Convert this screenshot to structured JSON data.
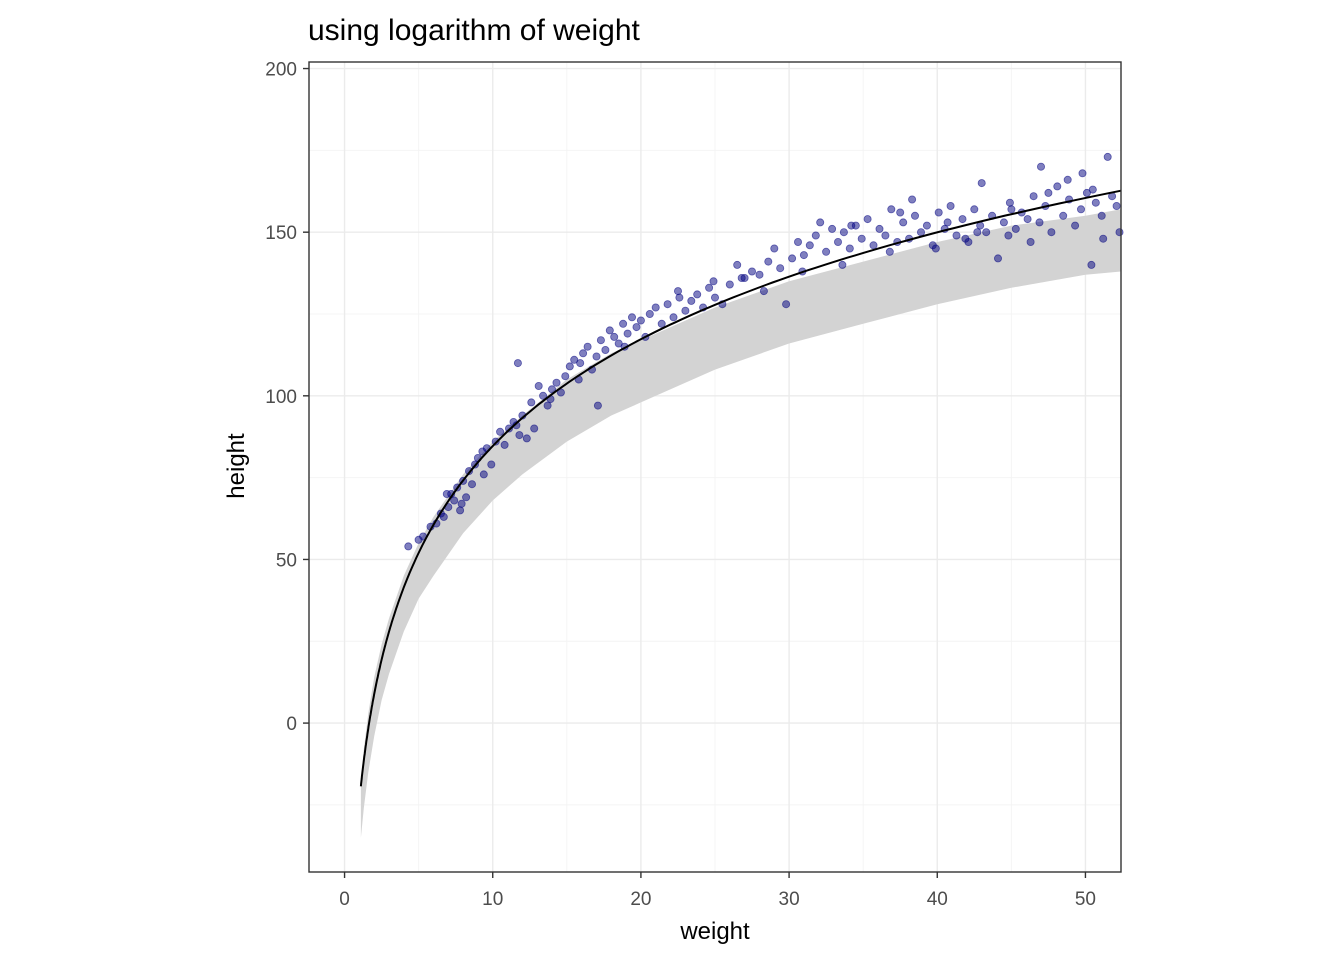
{
  "chart_data": {
    "type": "scatter",
    "title": "using logarithm of weight",
    "xlabel": "weight",
    "ylabel": "height",
    "xlim": [
      -2.4,
      52.4
    ],
    "ylim": [
      -45.5,
      202
    ],
    "x_ticks": [
      0,
      10,
      20,
      30,
      40,
      50
    ],
    "y_ticks": [
      0,
      50,
      100,
      150,
      200
    ],
    "grid": true,
    "legend": "none",
    "colors": {
      "points": "#000080",
      "fit_line": "#000000",
      "interval_band": "#d3d3d3",
      "panel_border": "#333333",
      "grid_major": "#ebebeb",
      "grid_minor": "#f4f4f4"
    },
    "fit": {
      "model": "height = a + b * ln(weight)",
      "a": -23.8,
      "b": 47.1,
      "x_start": 1.1,
      "x_end": 52.4
    },
    "interval": {
      "x": [
        1.1,
        1.3,
        1.6,
        2,
        2.5,
        3,
        4,
        5,
        6,
        8,
        10,
        12,
        15,
        18,
        20,
        25,
        30,
        35,
        40,
        45,
        50,
        52.4
      ],
      "lower": [
        -35,
        -26,
        -15,
        -4,
        7,
        15,
        28,
        38,
        45,
        58,
        68,
        76,
        86,
        94,
        98,
        108,
        116,
        122,
        128,
        133,
        137,
        138
      ],
      "upper": [
        -18,
        -8,
        3,
        14,
        24,
        32,
        45,
        55,
        63,
        76,
        86,
        94,
        105,
        113,
        117,
        127,
        135,
        141,
        147,
        152,
        155,
        157
      ]
    },
    "points": [
      [
        4.3,
        54
      ],
      [
        5,
        56
      ],
      [
        5.3,
        57
      ],
      [
        5.8,
        60
      ],
      [
        6.2,
        61
      ],
      [
        6.5,
        64
      ],
      [
        6.7,
        63
      ],
      [
        7,
        66
      ],
      [
        7.2,
        70
      ],
      [
        7.4,
        68
      ],
      [
        7.6,
        72
      ],
      [
        7.8,
        65
      ],
      [
        8,
        74
      ],
      [
        8.2,
        69
      ],
      [
        8.4,
        77
      ],
      [
        8.6,
        73
      ],
      [
        8.8,
        79
      ],
      [
        9,
        81
      ],
      [
        9.3,
        83
      ],
      [
        9.6,
        84
      ],
      [
        9.9,
        79
      ],
      [
        10.2,
        86
      ],
      [
        10.5,
        89
      ],
      [
        10.8,
        85
      ],
      [
        11.1,
        90
      ],
      [
        11.4,
        92
      ],
      [
        11.7,
        110
      ],
      [
        11.8,
        88
      ],
      [
        12,
        94
      ],
      [
        12.3,
        87
      ],
      [
        12.6,
        98
      ],
      [
        12.8,
        90
      ],
      [
        13.1,
        103
      ],
      [
        13.4,
        100
      ],
      [
        13.7,
        97
      ],
      [
        14,
        102
      ],
      [
        14.3,
        104
      ],
      [
        14.6,
        101
      ],
      [
        14.9,
        106
      ],
      [
        15.2,
        109
      ],
      [
        15.5,
        111
      ],
      [
        15.8,
        105
      ],
      [
        16.1,
        113
      ],
      [
        16.4,
        115
      ],
      [
        16.7,
        108
      ],
      [
        17,
        112
      ],
      [
        17.1,
        97
      ],
      [
        17.3,
        117
      ],
      [
        17.6,
        114
      ],
      [
        17.9,
        120
      ],
      [
        18.2,
        118
      ],
      [
        18.5,
        116
      ],
      [
        18.8,
        122
      ],
      [
        19.1,
        119
      ],
      [
        19.4,
        124
      ],
      [
        19.7,
        121
      ],
      [
        20,
        123
      ],
      [
        20.3,
        118
      ],
      [
        20.6,
        125
      ],
      [
        21,
        127
      ],
      [
        21.4,
        122
      ],
      [
        21.8,
        128
      ],
      [
        22.2,
        124
      ],
      [
        22.6,
        130
      ],
      [
        23,
        126
      ],
      [
        23.4,
        129
      ],
      [
        23.8,
        131
      ],
      [
        24.2,
        127
      ],
      [
        24.6,
        133
      ],
      [
        25,
        130
      ],
      [
        25.5,
        128
      ],
      [
        26,
        134
      ],
      [
        26.5,
        140
      ],
      [
        27,
        136
      ],
      [
        27.5,
        138
      ],
      [
        28,
        137
      ],
      [
        28.3,
        132
      ],
      [
        28.6,
        141
      ],
      [
        29,
        145
      ],
      [
        29.4,
        139
      ],
      [
        29.8,
        128
      ],
      [
        30.2,
        142
      ],
      [
        30.6,
        147
      ],
      [
        31,
        143
      ],
      [
        31.4,
        146
      ],
      [
        31.8,
        149
      ],
      [
        32.1,
        153
      ],
      [
        32.5,
        144
      ],
      [
        32.9,
        151
      ],
      [
        33.3,
        147
      ],
      [
        33.7,
        150
      ],
      [
        34.1,
        145
      ],
      [
        34.5,
        152
      ],
      [
        34.9,
        148
      ],
      [
        35.3,
        154
      ],
      [
        35.7,
        146
      ],
      [
        36.1,
        151
      ],
      [
        36.5,
        149
      ],
      [
        36.9,
        157
      ],
      [
        37.3,
        147
      ],
      [
        37.7,
        153
      ],
      [
        38.1,
        148
      ],
      [
        38.5,
        155
      ],
      [
        38.9,
        150
      ],
      [
        39.3,
        152
      ],
      [
        39.7,
        146
      ],
      [
        40.1,
        156
      ],
      [
        40.5,
        151
      ],
      [
        40.9,
        158
      ],
      [
        41.3,
        149
      ],
      [
        41.7,
        154
      ],
      [
        42.1,
        147
      ],
      [
        42.5,
        157
      ],
      [
        42.9,
        152
      ],
      [
        43.3,
        150
      ],
      [
        43.7,
        155
      ],
      [
        44.1,
        142
      ],
      [
        44.5,
        153
      ],
      [
        44.9,
        159
      ],
      [
        45.3,
        151
      ],
      [
        45.7,
        156
      ],
      [
        46.1,
        154
      ],
      [
        46.5,
        161
      ],
      [
        46.9,
        153
      ],
      [
        47.3,
        158
      ],
      [
        47.7,
        150
      ],
      [
        48.1,
        164
      ],
      [
        48.5,
        155
      ],
      [
        48.9,
        160
      ],
      [
        49.3,
        152
      ],
      [
        49.7,
        157
      ],
      [
        50.1,
        162
      ],
      [
        50.4,
        140
      ],
      [
        50.7,
        159
      ],
      [
        51.1,
        155
      ],
      [
        51.5,
        173
      ],
      [
        51.8,
        161
      ],
      [
        52.1,
        158
      ],
      [
        52.3,
        150
      ],
      [
        38.3,
        160
      ],
      [
        34.2,
        152
      ],
      [
        36.8,
        144
      ],
      [
        43,
        165
      ],
      [
        47,
        170
      ],
      [
        49.8,
        168
      ],
      [
        30.9,
        138
      ],
      [
        26.8,
        136
      ],
      [
        18.9,
        115
      ],
      [
        9.4,
        76
      ],
      [
        7.9,
        67
      ],
      [
        6.9,
        70
      ],
      [
        11.6,
        91
      ],
      [
        13.9,
        99
      ],
      [
        15.9,
        110
      ],
      [
        22.5,
        132
      ],
      [
        24.9,
        135
      ],
      [
        33.6,
        140
      ],
      [
        39.9,
        145
      ],
      [
        41.9,
        148
      ],
      [
        44.8,
        149
      ],
      [
        46.3,
        147
      ],
      [
        48.8,
        166
      ],
      [
        51.2,
        148
      ],
      [
        37.5,
        156
      ],
      [
        40.7,
        153
      ],
      [
        42.7,
        150
      ],
      [
        45,
        157
      ],
      [
        47.5,
        162
      ],
      [
        50.5,
        163
      ]
    ]
  }
}
